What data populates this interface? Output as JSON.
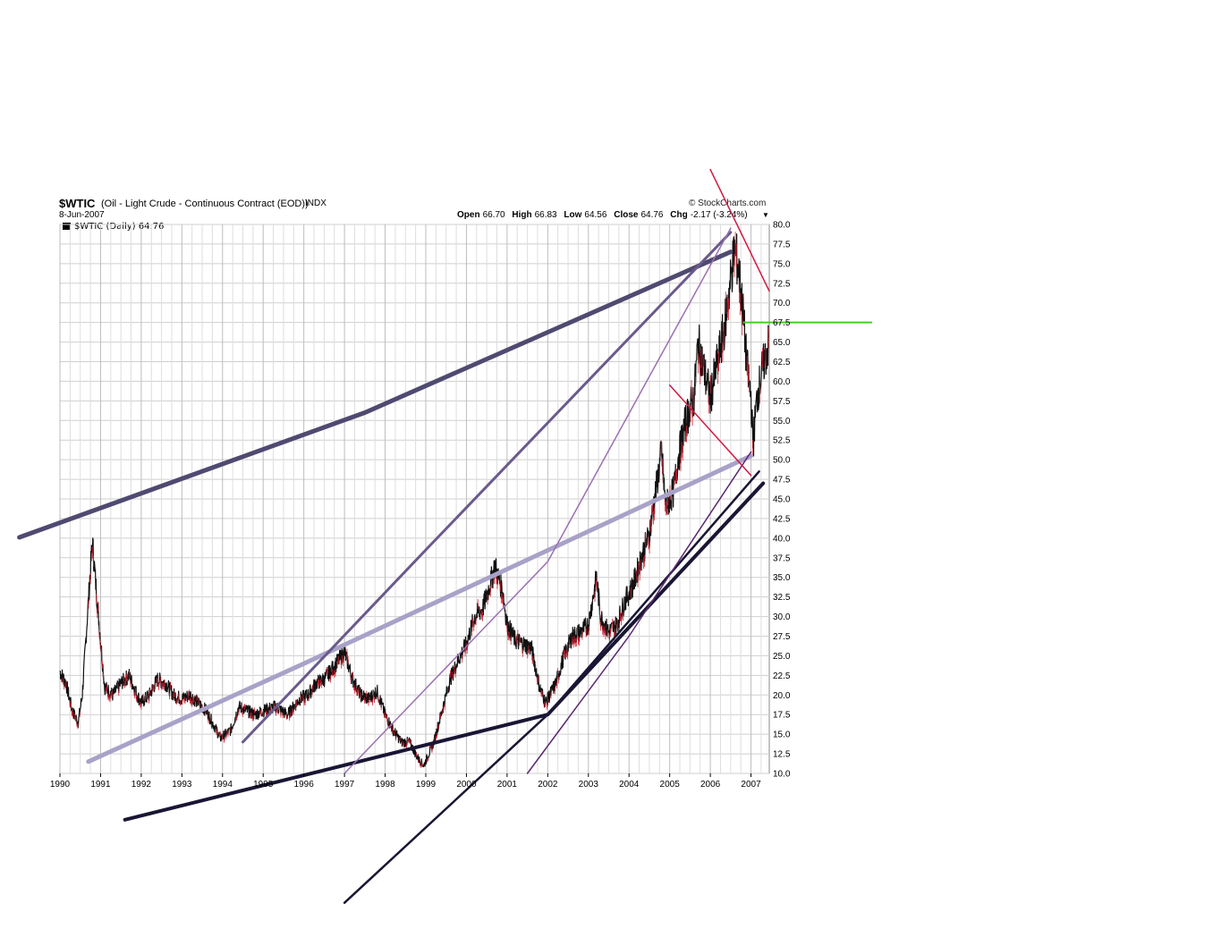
{
  "header": {
    "symbol": "$WTIC",
    "description": "(Oil - Light Crude - Continuous Contract (EOD))",
    "exchange": "INDX",
    "date": "8-Jun-2007",
    "brand": "© StockCharts.com",
    "open_label": "Open",
    "open": "66.70",
    "high_label": "High",
    "high": "66.83",
    "low_label": "Low",
    "low": "64.56",
    "close_label": "Close",
    "close": "64.76",
    "chg_label": "Chg",
    "chg": "-2.17 (-3.24%)",
    "down_arrow": "▼",
    "legend": "$WTIC (Daily) 64.76"
  },
  "chart_data": {
    "type": "line",
    "xlim": [
      1990.0,
      2007.45
    ],
    "ylim": [
      10.0,
      80.0
    ],
    "y_ticks": [
      "10.0",
      "12.5",
      "15.0",
      "17.5",
      "20.0",
      "22.5",
      "25.0",
      "27.5",
      "30.0",
      "32.5",
      "35.0",
      "37.5",
      "40.0",
      "42.5",
      "45.0",
      "47.5",
      "50.0",
      "52.5",
      "55.0",
      "57.5",
      "60.0",
      "62.5",
      "65.0",
      "67.5",
      "70.0",
      "72.5",
      "75.0",
      "77.5",
      "80.0"
    ],
    "x_ticks": [
      "1990",
      "1991",
      "1992",
      "1993",
      "1994",
      "1995",
      "1996",
      "1997",
      "1998",
      "1999",
      "2000",
      "2001",
      "2002",
      "2003",
      "2004",
      "2005",
      "2006",
      "2007"
    ],
    "grid": true,
    "price_series": {
      "x": [
        1990.0,
        1990.15,
        1990.3,
        1990.45,
        1990.55,
        1990.65,
        1990.75,
        1990.8,
        1990.9,
        1991.0,
        1991.1,
        1991.3,
        1991.5,
        1991.7,
        1991.9,
        1992.0,
        1992.2,
        1992.4,
        1992.6,
        1992.8,
        1993.0,
        1993.2,
        1993.4,
        1993.6,
        1993.8,
        1993.95,
        1994.2,
        1994.4,
        1994.6,
        1994.8,
        1995.0,
        1995.3,
        1995.6,
        1995.9,
        1996.1,
        1996.3,
        1996.5,
        1996.8,
        1997.0,
        1997.2,
        1997.4,
        1997.6,
        1997.8,
        1998.0,
        1998.2,
        1998.4,
        1998.6,
        1998.8,
        1998.95,
        1999.2,
        1999.4,
        1999.6,
        1999.8,
        2000.0,
        2000.2,
        2000.4,
        2000.6,
        2000.7,
        2000.9,
        2001.0,
        2001.2,
        2001.4,
        2001.6,
        2001.8,
        2001.95,
        2002.2,
        2002.4,
        2002.6,
        2002.8,
        2003.0,
        2003.2,
        2003.3,
        2003.5,
        2003.7,
        2003.9,
        2004.1,
        2004.3,
        2004.5,
        2004.6,
        2004.8,
        2004.9,
        2005.1,
        2005.2,
        2005.4,
        2005.6,
        2005.7,
        2005.9,
        2006.0,
        2006.2,
        2006.35,
        2006.5,
        2006.6,
        2006.7,
        2006.8,
        2006.9,
        2007.0,
        2007.05,
        2007.15,
        2007.3,
        2007.44
      ],
      "y": [
        23.0,
        21.5,
        18.0,
        16.5,
        20.0,
        28.0,
        36.0,
        39.5,
        33.0,
        27.0,
        21.0,
        20.0,
        21.5,
        22.5,
        20.0,
        19.0,
        20.0,
        22.0,
        21.5,
        20.0,
        19.5,
        20.0,
        19.0,
        18.0,
        16.0,
        14.5,
        15.5,
        18.5,
        18.0,
        17.5,
        18.0,
        18.5,
        17.5,
        19.5,
        20.0,
        21.5,
        22.0,
        24.0,
        25.5,
        22.0,
        20.0,
        19.5,
        20.5,
        17.5,
        15.5,
        14.0,
        14.0,
        12.0,
        11.0,
        14.0,
        18.0,
        22.0,
        24.5,
        26.5,
        30.0,
        31.0,
        34.5,
        36.5,
        33.0,
        29.0,
        27.0,
        26.5,
        26.0,
        21.0,
        19.0,
        21.5,
        25.0,
        27.5,
        28.0,
        29.0,
        35.0,
        30.0,
        28.0,
        29.0,
        32.0,
        34.0,
        37.5,
        40.5,
        44.0,
        51.0,
        44.0,
        46.0,
        50.0,
        55.0,
        58.0,
        65.0,
        60.0,
        58.0,
        63.0,
        67.0,
        73.0,
        77.0,
        74.0,
        69.0,
        62.0,
        58.0,
        52.0,
        58.0,
        62.0,
        64.76
      ]
    },
    "trendlines": [
      {
        "color": "#4f4a70",
        "width": 5,
        "points": [
          [
            1989.0,
            40.1
          ],
          [
            1997.5,
            56.0
          ],
          [
            2006.5,
            76.5
          ]
        ]
      },
      {
        "color": "#a8a2c8",
        "width": 5,
        "points": [
          [
            1990.7,
            11.5
          ],
          [
            1996.0,
            24.0
          ],
          [
            2007.0,
            50.5
          ]
        ]
      },
      {
        "color": "#191634",
        "width": 4,
        "points": [
          [
            1991.6,
            4.1
          ],
          [
            2002.0,
            17.5
          ],
          [
            2007.3,
            47.0
          ]
        ]
      },
      {
        "color": "#191634",
        "width": 2.5,
        "points": [
          [
            1997.0,
            -6.5
          ],
          [
            2002.0,
            17.5
          ],
          [
            2007.2,
            48.5
          ]
        ]
      },
      {
        "color": "#6a5a8c",
        "width": 3,
        "points": [
          [
            1994.5,
            14.0
          ],
          [
            1999.0,
            38.5
          ],
          [
            2006.5,
            79.0
          ]
        ]
      },
      {
        "color": "#9a70b2",
        "width": 1.5,
        "points": [
          [
            1997.0,
            10.0
          ],
          [
            2002.0,
            37.0
          ],
          [
            2006.5,
            79.5
          ]
        ]
      },
      {
        "color": "#5a2870",
        "width": 1.5,
        "points": [
          [
            2001.5,
            10.0
          ],
          [
            2004.0,
            27.5
          ],
          [
            2007.0,
            51.0
          ]
        ]
      },
      {
        "color": "#d01840",
        "width": 1.5,
        "points": [
          [
            2006.0,
            87.0
          ],
          [
            2007.45,
            71.5
          ]
        ]
      },
      {
        "color": "#d01840",
        "width": 1.5,
        "points": [
          [
            2005.0,
            59.5
          ],
          [
            2007.0,
            48.0
          ]
        ]
      }
    ],
    "horizontal_line": {
      "color": "#40d020",
      "y": 67.5,
      "x_start": 2006.8
    }
  }
}
